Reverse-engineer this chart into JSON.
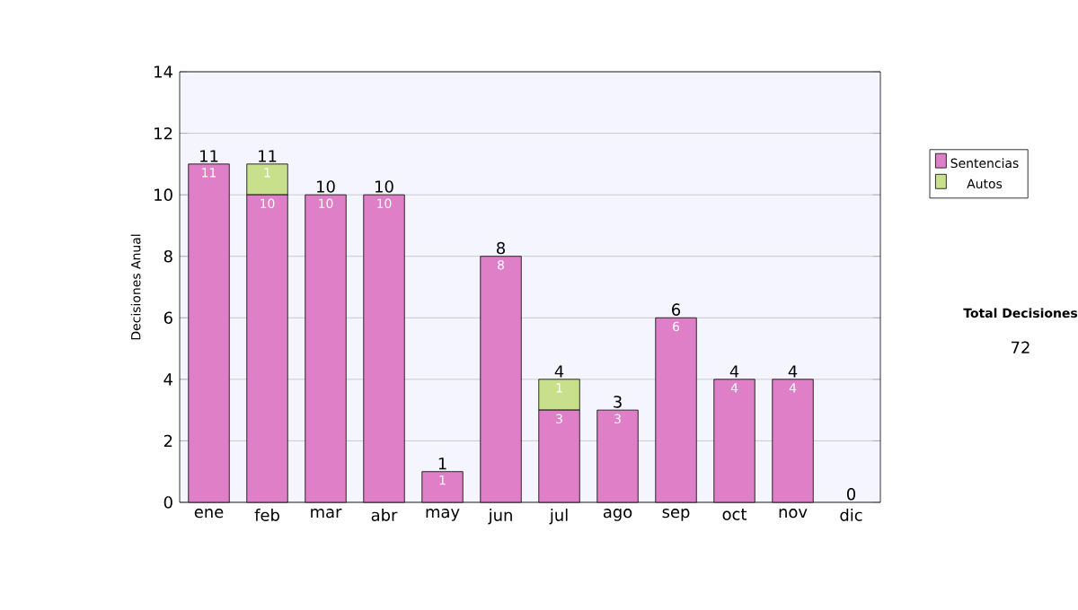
{
  "chart_data": {
    "type": "bar",
    "stacked": true,
    "ylabel": "Decisiones Anual",
    "categories": [
      "ene",
      "feb",
      "mar",
      "abr",
      "may",
      "jun",
      "jul",
      "ago",
      "sep",
      "oct",
      "nov",
      "dic"
    ],
    "series": [
      {
        "name": "Sentencias",
        "color": "#de7fc8",
        "values": [
          11,
          10,
          10,
          10,
          1,
          8,
          3,
          3,
          6,
          4,
          4,
          0
        ],
        "value_labels": [
          "11",
          "10",
          "10",
          "10",
          "1",
          "8",
          "3",
          "3",
          "6",
          "4",
          "4",
          null
        ]
      },
      {
        "name": "Autos",
        "color": "#c8e08c",
        "values": [
          0,
          1,
          0,
          0,
          0,
          0,
          1,
          0,
          0,
          0,
          0,
          0
        ],
        "value_labels": [
          null,
          "1",
          null,
          null,
          null,
          null,
          "1",
          null,
          null,
          null,
          null,
          null
        ]
      }
    ],
    "totals": [
      "11",
      "11",
      "10",
      "10",
      "1",
      "8",
      "4",
      "3",
      "6",
      "4",
      "4",
      "0"
    ],
    "ylim": [
      0,
      14
    ],
    "yticks": [
      0,
      2,
      4,
      6,
      8,
      10,
      12,
      14
    ],
    "grid": "y",
    "legend": "right",
    "annotations": [
      "Total Decisiones",
      "72"
    ]
  }
}
